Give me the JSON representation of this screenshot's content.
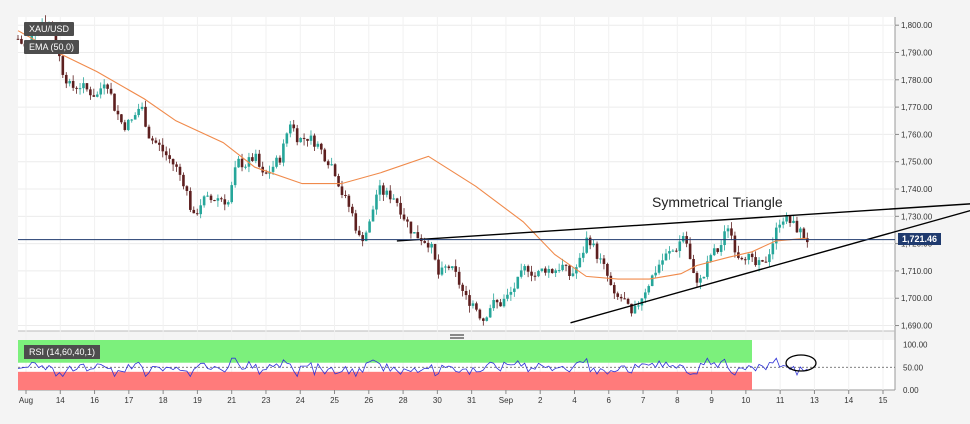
{
  "header": {
    "symbol": "XAU/USD",
    "ema_label": "EMA (50,0)",
    "rsi_label": "RSI (14,60,40,1)",
    "last_price": "1,721.46",
    "annotation": "Symmetrical Triangle"
  },
  "colors": {
    "up": "#26a69a",
    "down": "#5d1f1f",
    "ema": "#f08a4b",
    "rsi_line": "#2f33d6",
    "rsi_overbought": "#7cf07c",
    "rsi_oversold": "#ff7b7b",
    "price_tag": "#1f3a6e"
  },
  "chart_data": {
    "type": "candlestick",
    "price_axis": {
      "ticks": [
        "1,800.00",
        "1,790.00",
        "1,780.00",
        "1,770.00",
        "1,760.00",
        "1,750.00",
        "1,740.00",
        "1,730.00",
        "1,720.00",
        "1,710.00",
        "1,700.00",
        "1,690.00"
      ],
      "values": [
        1800,
        1790,
        1780,
        1770,
        1760,
        1750,
        1740,
        1730,
        1720,
        1710,
        1700,
        1690
      ],
      "ylim": [
        1688,
        1803
      ]
    },
    "rsi_axis": {
      "ticks": [
        "100.00",
        "50.00",
        "0.00"
      ],
      "values": [
        100,
        50,
        0
      ],
      "ylim": [
        0,
        110
      ],
      "overbought": 60,
      "oversold": 40
    },
    "x_labels": [
      "Aug",
      "14",
      "16",
      "17",
      "18",
      "19",
      "21",
      "23",
      "24",
      "25",
      "26",
      "28",
      "30",
      "31",
      "Sep",
      "2",
      "4",
      "6",
      "7",
      "8",
      "9",
      "10",
      "11",
      "13",
      "14",
      "15"
    ],
    "last_price": 1721.46,
    "ema_points": [
      [
        0,
        1798
      ],
      [
        0.05,
        1790
      ],
      [
        0.1,
        1783
      ],
      [
        0.16,
        1773
      ],
      [
        0.2,
        1765
      ],
      [
        0.26,
        1757
      ],
      [
        0.3,
        1748
      ],
      [
        0.36,
        1742
      ],
      [
        0.41,
        1742
      ],
      [
        0.46,
        1746
      ],
      [
        0.52,
        1752
      ],
      [
        0.58,
        1741
      ],
      [
        0.64,
        1728
      ],
      [
        0.68,
        1716
      ],
      [
        0.72,
        1708
      ],
      [
        0.76,
        1707
      ],
      [
        0.8,
        1707
      ],
      [
        0.84,
        1709
      ],
      [
        0.86,
        1712
      ],
      [
        0.9,
        1715
      ],
      [
        0.93,
        1717
      ],
      [
        0.96,
        1721
      ],
      [
        1,
        1722
      ]
    ],
    "price_path": [
      [
        0,
        1795
      ],
      [
        0.01,
        1791
      ],
      [
        0.02,
        1800
      ],
      [
        0.03,
        1802
      ],
      [
        0.04,
        1799
      ],
      [
        0.05,
        1784
      ],
      [
        0.06,
        1777
      ],
      [
        0.07,
        1778
      ],
      [
        0.08,
        1776
      ],
      [
        0.09,
        1774
      ],
      [
        0.1,
        1781
      ],
      [
        0.11,
        1770
      ],
      [
        0.12,
        1763
      ],
      [
        0.13,
        1765
      ],
      [
        0.14,
        1771
      ],
      [
        0.15,
        1759
      ],
      [
        0.16,
        1756
      ],
      [
        0.17,
        1752
      ],
      [
        0.18,
        1748
      ],
      [
        0.19,
        1742
      ],
      [
        0.2,
        1729
      ],
      [
        0.21,
        1736
      ],
      [
        0.22,
        1736
      ],
      [
        0.23,
        1737
      ],
      [
        0.24,
        1735
      ],
      [
        0.25,
        1750
      ],
      [
        0.26,
        1749
      ],
      [
        0.27,
        1752
      ],
      [
        0.28,
        1744
      ],
      [
        0.29,
        1748
      ],
      [
        0.3,
        1752
      ],
      [
        0.31,
        1765
      ],
      [
        0.32,
        1758
      ],
      [
        0.33,
        1759
      ],
      [
        0.34,
        1757
      ],
      [
        0.35,
        1752
      ],
      [
        0.36,
        1748
      ],
      [
        0.37,
        1738
      ],
      [
        0.38,
        1732
      ],
      [
        0.39,
        1721
      ],
      [
        0.4,
        1726
      ],
      [
        0.41,
        1740
      ],
      [
        0.42,
        1738
      ],
      [
        0.43,
        1737
      ],
      [
        0.44,
        1730
      ],
      [
        0.45,
        1724
      ],
      [
        0.46,
        1722
      ],
      [
        0.47,
        1720
      ],
      [
        0.48,
        1708
      ],
      [
        0.49,
        1712
      ],
      [
        0.5,
        1708
      ],
      [
        0.51,
        1700
      ],
      [
        0.52,
        1698
      ],
      [
        0.53,
        1692
      ],
      [
        0.54,
        1698
      ],
      [
        0.55,
        1698
      ],
      [
        0.56,
        1701
      ],
      [
        0.57,
        1706
      ],
      [
        0.58,
        1712
      ],
      [
        0.59,
        1708
      ],
      [
        0.6,
        1711
      ],
      [
        0.61,
        1710
      ],
      [
        0.62,
        1712
      ],
      [
        0.63,
        1708
      ],
      [
        0.64,
        1713
      ],
      [
        0.65,
        1723
      ],
      [
        0.66,
        1716
      ],
      [
        0.67,
        1710
      ],
      [
        0.68,
        1700
      ],
      [
        0.69,
        1700
      ],
      [
        0.7,
        1693
      ],
      [
        0.71,
        1700
      ],
      [
        0.72,
        1706
      ],
      [
        0.73,
        1712
      ],
      [
        0.74,
        1716
      ],
      [
        0.75,
        1718
      ],
      [
        0.76,
        1724
      ],
      [
        0.77,
        1708
      ],
      [
        0.78,
        1706
      ],
      [
        0.79,
        1716
      ],
      [
        0.8,
        1718
      ],
      [
        0.81,
        1727
      ],
      [
        0.82,
        1716
      ],
      [
        0.83,
        1716
      ],
      [
        0.84,
        1712
      ],
      [
        0.85,
        1712
      ],
      [
        0.86,
        1720
      ],
      [
        0.87,
        1730
      ],
      [
        0.88,
        1728
      ],
      [
        0.89,
        1725
      ],
      [
        0.9,
        1721.46
      ]
    ],
    "trendlines": [
      {
        "name": "upper",
        "from": [
          0.48,
          1721
        ],
        "to": [
          1.23,
          1735
        ]
      },
      {
        "name": "lower",
        "from": [
          0.7,
          1691
        ],
        "to": [
          1.23,
          1734
        ]
      }
    ]
  }
}
